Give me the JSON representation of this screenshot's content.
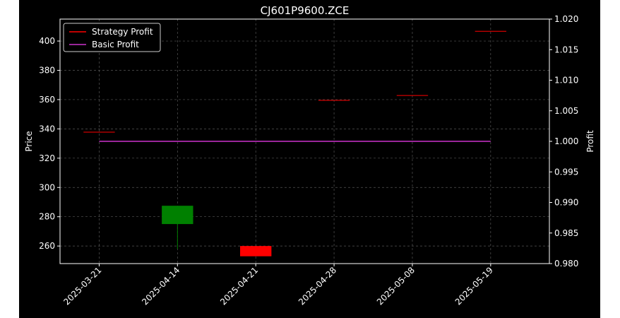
{
  "chart_data": {
    "type": "candlestick",
    "title": "CJ601P9600.ZCE",
    "xlabel": "",
    "ylabel": "Price",
    "ylabel_right": "Profit",
    "categories": [
      "2025-03-21",
      "2025-04-14",
      "2025-04-21",
      "2025-04-28",
      "2025-05-08",
      "2025-05-19"
    ],
    "ylim": [
      248,
      415
    ],
    "yticks": [
      260,
      280,
      300,
      320,
      340,
      360,
      380,
      400
    ],
    "ylim_right": [
      0.98,
      1.02
    ],
    "yticks_right": [
      "0.980",
      "0.985",
      "0.990",
      "0.995",
      "1.000",
      "1.005",
      "1.010",
      "1.015",
      "1.020"
    ],
    "grid": true,
    "legend_position": "upper-left",
    "candles": [
      {
        "date": "2025-04-14",
        "open": 275,
        "close": 287.5,
        "high": 287.5,
        "low": 258,
        "color": "#008000"
      },
      {
        "date": "2025-04-21",
        "open": 260,
        "close": 253,
        "high": 260,
        "low": 253,
        "color": "#ff0000"
      }
    ],
    "series": [
      {
        "name": "Strategy Profit",
        "color": "#ff0000",
        "axis": "right",
        "values": [
          1.0015,
          null,
          null,
          1.0067,
          1.0075,
          1.018
        ]
      },
      {
        "name": "Basic Profit",
        "color": "#cc33cc",
        "axis": "right",
        "values": [
          1.0,
          1.0,
          1.0,
          1.0,
          1.0,
          1.0
        ]
      }
    ]
  }
}
